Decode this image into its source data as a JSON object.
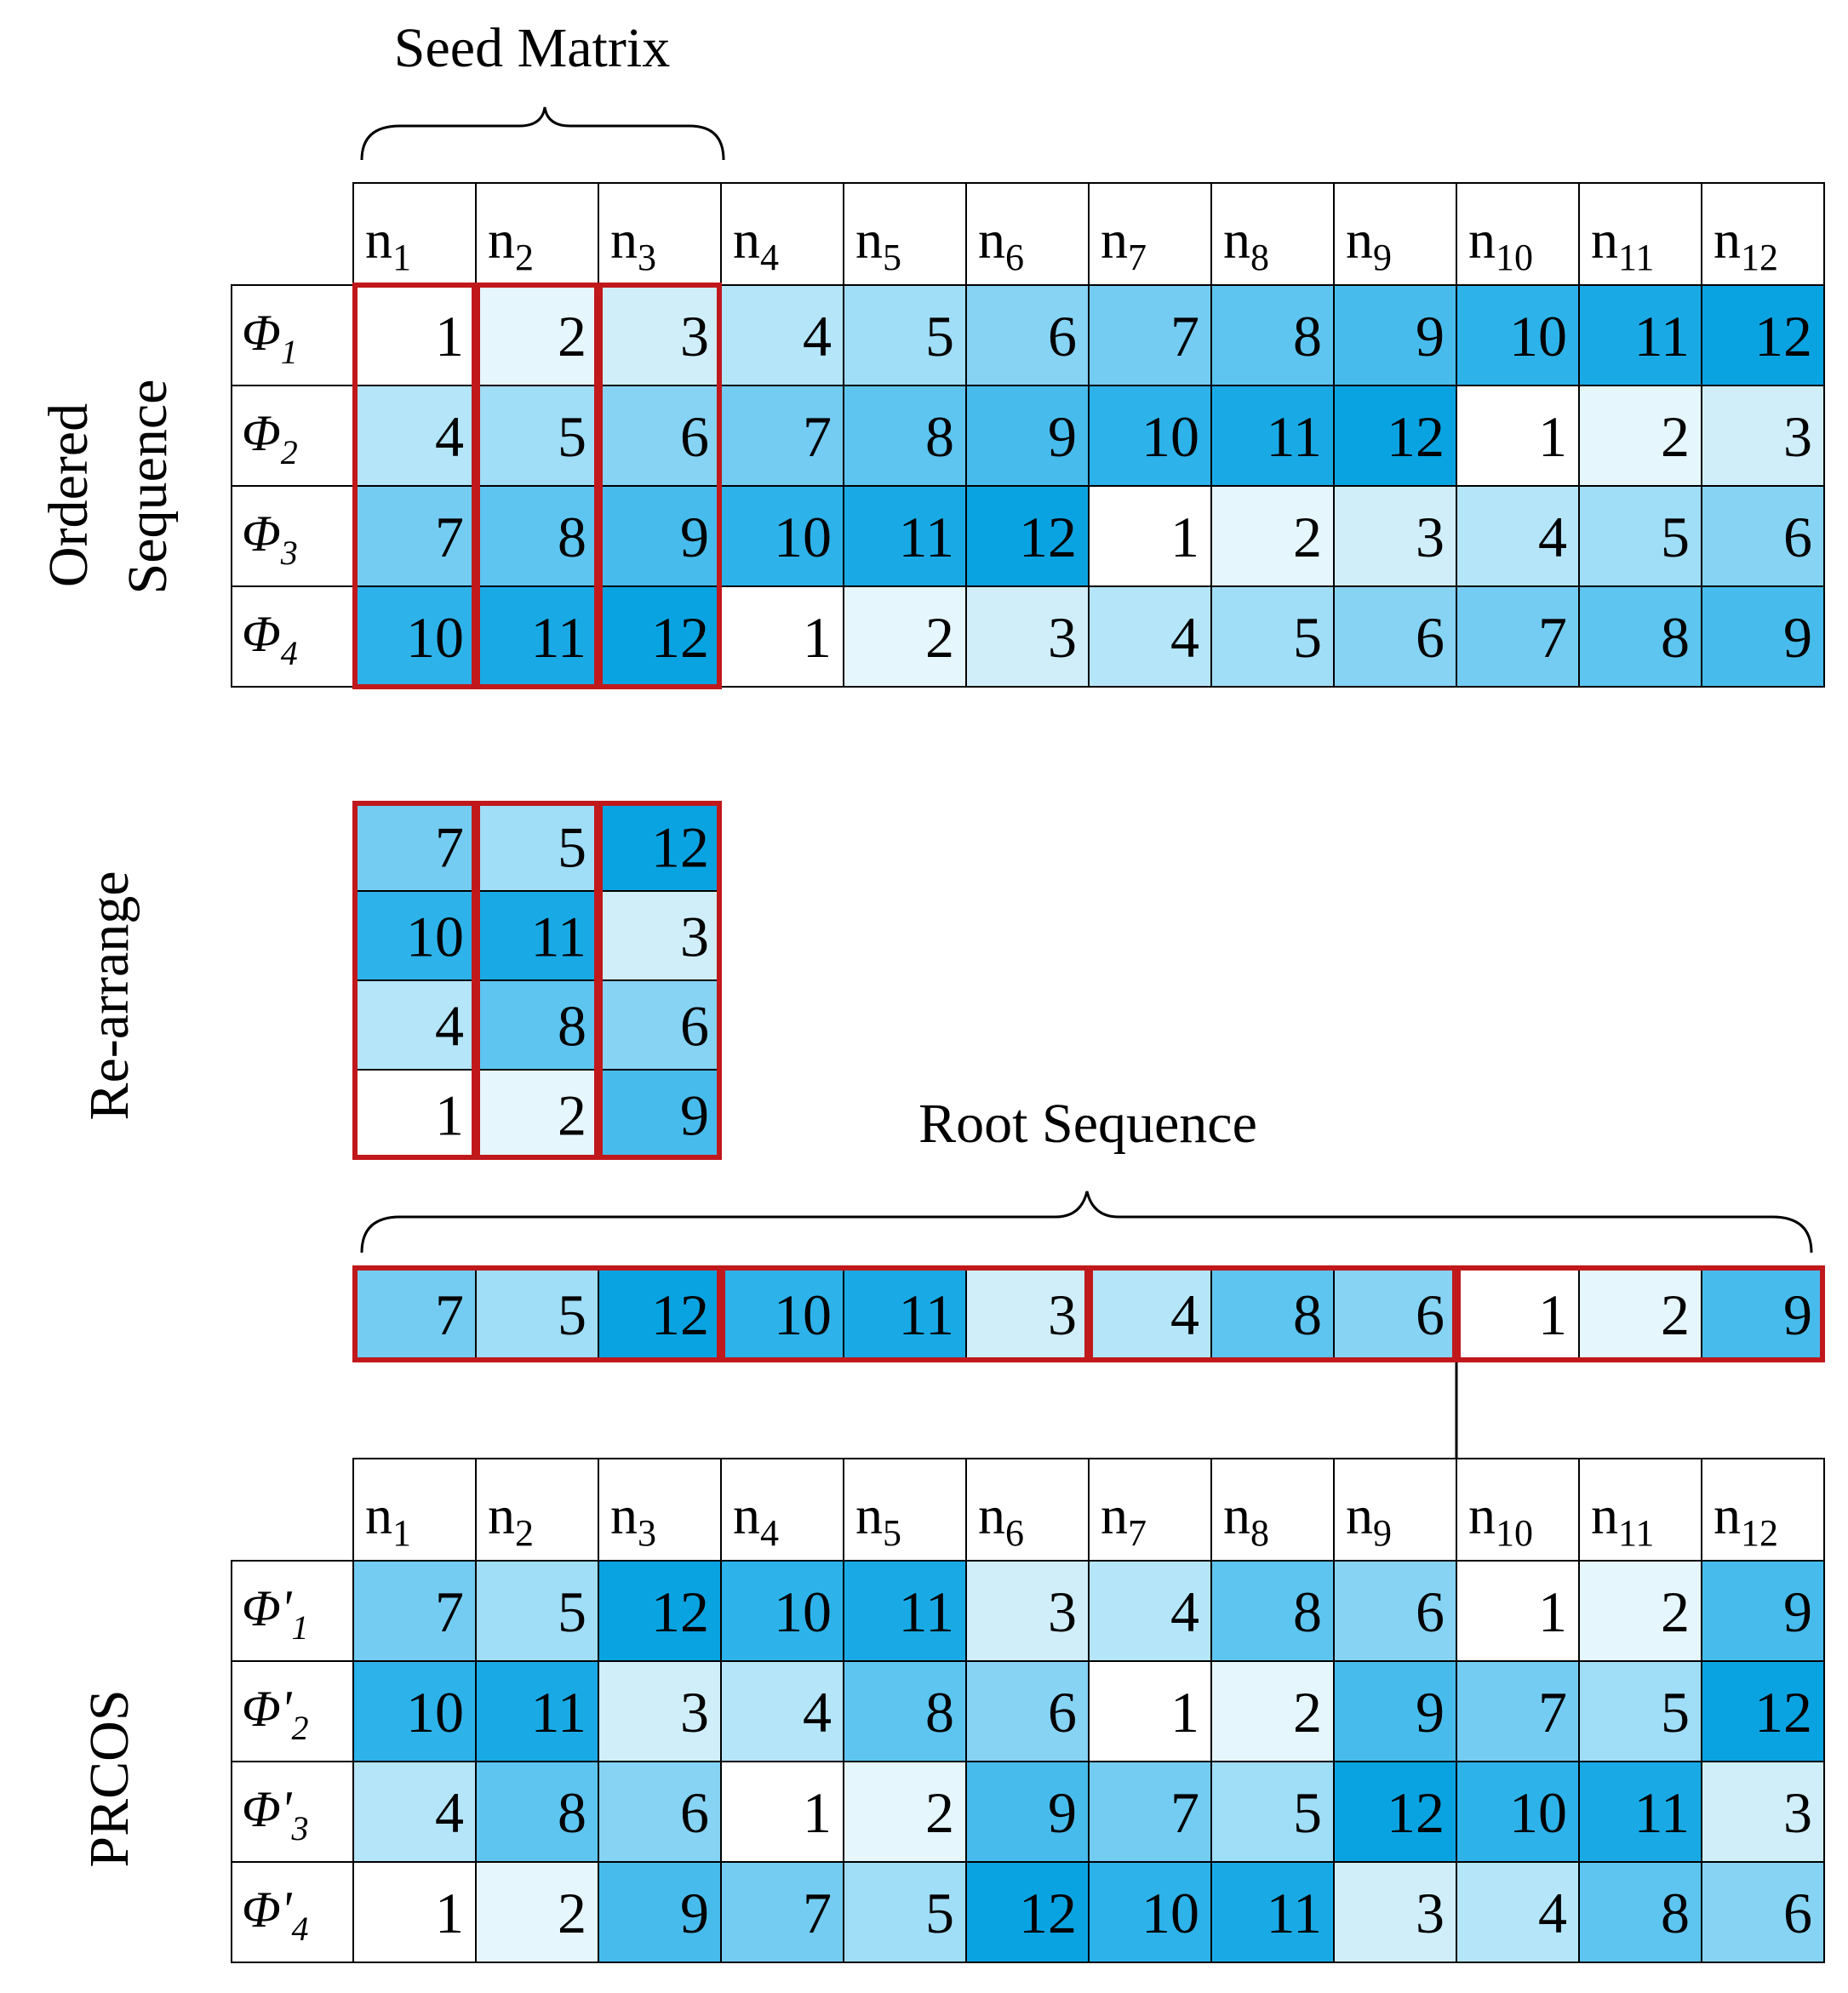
{
  "labels": {
    "seed_matrix": "Seed Matrix",
    "ordered_sequence_line1": "Ordered",
    "ordered_sequence_line2": "Sequence",
    "rearrange": "Re-arrange",
    "root_sequence": "Root Sequence",
    "prcos": "PRCOS"
  },
  "columns": [
    {
      "base": "n",
      "sub": "1"
    },
    {
      "base": "n",
      "sub": "2"
    },
    {
      "base": "n",
      "sub": "3"
    },
    {
      "base": "n",
      "sub": "4"
    },
    {
      "base": "n",
      "sub": "5"
    },
    {
      "base": "n",
      "sub": "6"
    },
    {
      "base": "n",
      "sub": "7"
    },
    {
      "base": "n",
      "sub": "8"
    },
    {
      "base": "n",
      "sub": "9"
    },
    {
      "base": "n",
      "sub": "10"
    },
    {
      "base": "n",
      "sub": "11"
    },
    {
      "base": "n",
      "sub": "12"
    }
  ],
  "ordered_sequence": {
    "rows": [
      {
        "label": "Φ",
        "sub": "1",
        "values": [
          1,
          2,
          3,
          4,
          5,
          6,
          7,
          8,
          9,
          10,
          11,
          12
        ]
      },
      {
        "label": "Φ",
        "sub": "2",
        "values": [
          4,
          5,
          6,
          7,
          8,
          9,
          10,
          11,
          12,
          1,
          2,
          3
        ]
      },
      {
        "label": "Φ",
        "sub": "3",
        "values": [
          7,
          8,
          9,
          10,
          11,
          12,
          1,
          2,
          3,
          4,
          5,
          6
        ]
      },
      {
        "label": "Φ",
        "sub": "4",
        "values": [
          10,
          11,
          12,
          1,
          2,
          3,
          4,
          5,
          6,
          7,
          8,
          9
        ]
      }
    ]
  },
  "rearranged_seed": [
    [
      7,
      5,
      12
    ],
    [
      10,
      11,
      3
    ],
    [
      4,
      8,
      6
    ],
    [
      1,
      2,
      9
    ]
  ],
  "root_sequence": [
    7,
    5,
    12,
    10,
    11,
    3,
    4,
    8,
    6,
    1,
    2,
    9
  ],
  "prcos": {
    "rows": [
      {
        "label": "Φ'",
        "sub": "1",
        "values": [
          7,
          5,
          12,
          10,
          11,
          3,
          4,
          8,
          6,
          1,
          2,
          9
        ]
      },
      {
        "label": "Φ'",
        "sub": "2",
        "values": [
          10,
          11,
          3,
          4,
          8,
          6,
          1,
          2,
          9,
          7,
          5,
          12
        ]
      },
      {
        "label": "Φ'",
        "sub": "3",
        "values": [
          4,
          8,
          6,
          1,
          2,
          9,
          7,
          5,
          12,
          10,
          11,
          3
        ]
      },
      {
        "label": "Φ'",
        "sub": "4",
        "values": [
          1,
          2,
          9,
          7,
          5,
          12,
          10,
          11,
          3,
          4,
          8,
          6
        ]
      }
    ]
  },
  "colors": {
    "value_scale": [
      "#FFFFFF",
      "#E6F6FD",
      "#CFEEFA",
      "#B4E5F9",
      "#A0DDF7",
      "#86D3F4",
      "#74CCF2",
      "#5DC5F0",
      "#47BCEC",
      "#2DB2EA",
      "#19AAE6",
      "#0AA3E2"
    ],
    "highlight_border": "#C0181B",
    "grid_line": "#000000"
  }
}
